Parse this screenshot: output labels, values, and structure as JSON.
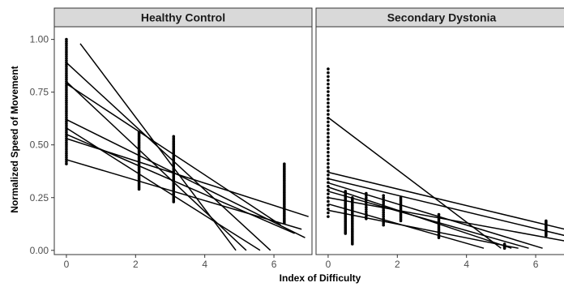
{
  "chart_data": {
    "type": "scatter",
    "xlabel": "Index of Difficulty",
    "ylabel": "Normalized Speed of Movement",
    "xlim": [
      -0.35,
      7.1
    ],
    "ylim": [
      -0.02,
      1.06
    ],
    "x_ticks": [
      0,
      2,
      4,
      6
    ],
    "y_ticks": [
      0.0,
      0.25,
      0.5,
      0.75,
      1.0
    ],
    "y_tick_labels": [
      "0.00",
      "0.25",
      "0.50",
      "0.75",
      "1.00"
    ],
    "grid": false,
    "colors": {
      "points": "#000000",
      "lines": "#000000",
      "strip": "#d9d9d9",
      "border": "#333333"
    },
    "panels": [
      {
        "title": "Healthy Control",
        "point_columns": [
          {
            "x": 0.0,
            "ymin": 0.41,
            "ymax": 1.0,
            "n": 60
          },
          {
            "x": 2.1,
            "ymin": 0.29,
            "ymax": 0.56,
            "n": 40
          },
          {
            "x": 3.1,
            "ymin": 0.23,
            "ymax": 0.54,
            "n": 40
          },
          {
            "x": 6.3,
            "ymin": 0.13,
            "ymax": 0.41,
            "n": 40
          }
        ],
        "fit_lines": [
          {
            "x1": 0.4,
            "y1": 0.98,
            "x2": 4.9,
            "y2": 0.0
          },
          {
            "x1": 0.0,
            "y1": 0.89,
            "x2": 5.9,
            "y2": 0.0
          },
          {
            "x1": 0.0,
            "y1": 0.8,
            "x2": 5.2,
            "y2": 0.0
          },
          {
            "x1": 0.0,
            "y1": 0.79,
            "x2": 6.2,
            "y2": 0.12
          },
          {
            "x1": 0.0,
            "y1": 0.62,
            "x2": 6.9,
            "y2": 0.06
          },
          {
            "x1": 0.0,
            "y1": 0.58,
            "x2": 5.6,
            "y2": 0.0
          },
          {
            "x1": 0.0,
            "y1": 0.55,
            "x2": 6.6,
            "y2": 0.08
          },
          {
            "x1": 0.0,
            "y1": 0.53,
            "x2": 7.0,
            "y2": 0.16
          },
          {
            "x1": 0.0,
            "y1": 0.43,
            "x2": 6.8,
            "y2": 0.1
          }
        ]
      },
      {
        "title": "Secondary Dystonia",
        "point_columns": [
          {
            "x": 0.0,
            "ymin": 0.16,
            "ymax": 0.86,
            "n": 40
          },
          {
            "x": 0.5,
            "ymin": 0.08,
            "ymax": 0.28,
            "n": 30
          },
          {
            "x": 0.7,
            "ymin": 0.03,
            "ymax": 0.25,
            "n": 30
          },
          {
            "x": 1.1,
            "ymin": 0.15,
            "ymax": 0.27,
            "n": 12
          },
          {
            "x": 1.6,
            "ymin": 0.12,
            "ymax": 0.26,
            "n": 15
          },
          {
            "x": 2.1,
            "ymin": 0.14,
            "ymax": 0.25,
            "n": 15
          },
          {
            "x": 3.2,
            "ymin": 0.06,
            "ymax": 0.17,
            "n": 15
          },
          {
            "x": 5.1,
            "ymin": 0.01,
            "ymax": 0.03,
            "n": 8
          },
          {
            "x": 6.3,
            "ymin": 0.07,
            "ymax": 0.14,
            "n": 15
          }
        ],
        "fit_lines": [
          {
            "x1": 0.0,
            "y1": 0.63,
            "x2": 5.0,
            "y2": 0.01
          },
          {
            "x1": 0.0,
            "y1": 0.37,
            "x2": 7.1,
            "y2": 0.09
          },
          {
            "x1": 0.0,
            "y1": 0.34,
            "x2": 7.1,
            "y2": 0.06
          },
          {
            "x1": 0.0,
            "y1": 0.32,
            "x2": 6.2,
            "y2": 0.01
          },
          {
            "x1": 0.0,
            "y1": 0.3,
            "x2": 5.3,
            "y2": 0.01
          },
          {
            "x1": 0.0,
            "y1": 0.28,
            "x2": 5.8,
            "y2": 0.01
          },
          {
            "x1": 0.0,
            "y1": 0.25,
            "x2": 7.0,
            "y2": 0.04
          },
          {
            "x1": 0.0,
            "y1": 0.22,
            "x2": 4.5,
            "y2": 0.01
          },
          {
            "x1": 0.0,
            "y1": 0.19,
            "x2": 5.5,
            "y2": 0.01
          }
        ]
      }
    ]
  }
}
